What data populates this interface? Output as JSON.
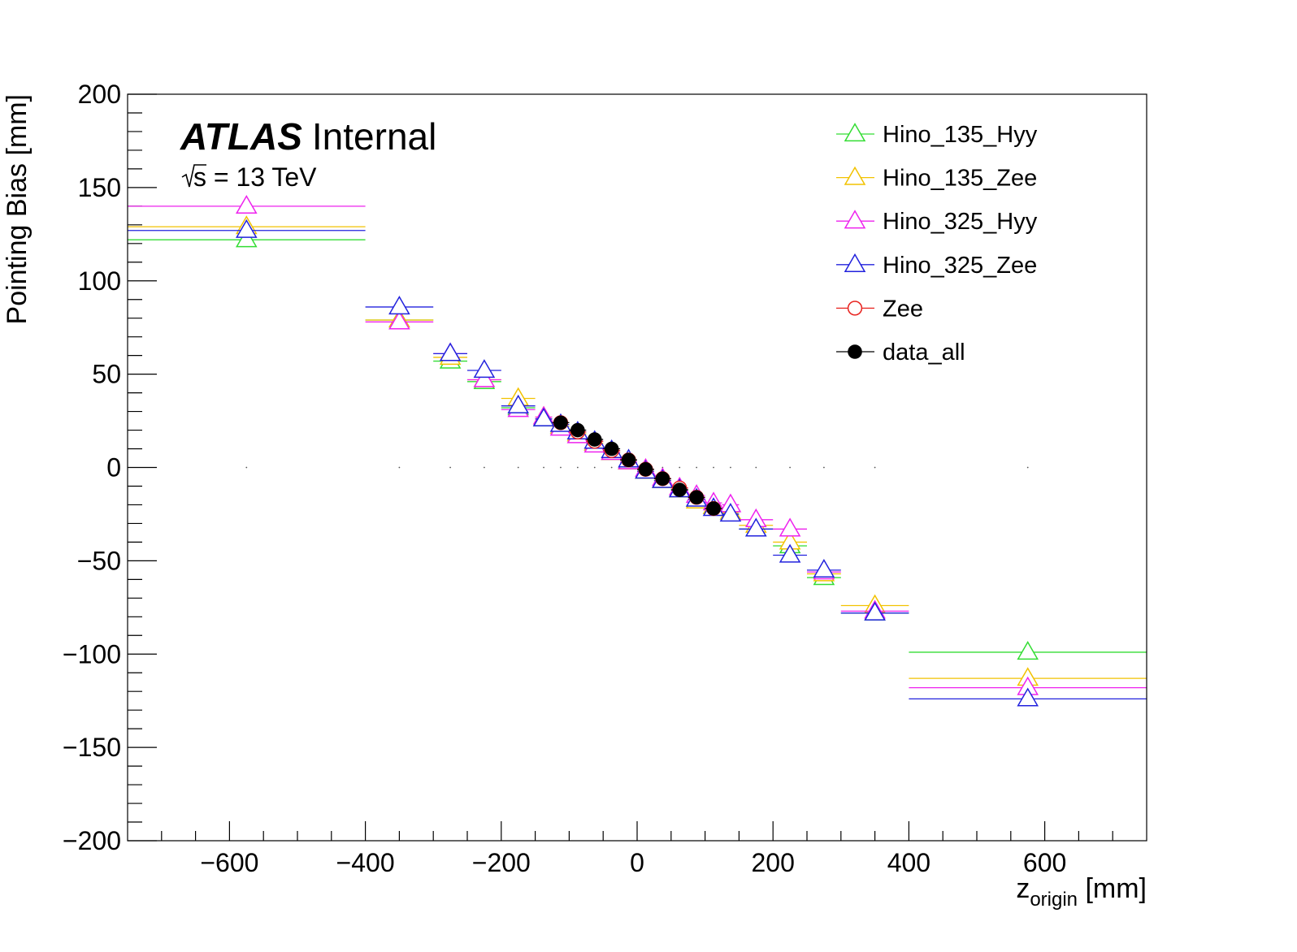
{
  "chart_data": {
    "type": "scatter",
    "experiment_label": "ATLAS",
    "status_label": "Internal",
    "energy_label": "s = 13 TeV",
    "xlabel_main": "z",
    "xlabel_sub": "origin",
    "xlabel_unit": " [mm]",
    "ylabel": "Pointing Bias [mm]",
    "xlim": [
      -750,
      750
    ],
    "ylim": [
      -200,
      200
    ],
    "x_ticks": [
      -600,
      -400,
      -200,
      0,
      200,
      400,
      600
    ],
    "x_tick_labels": [
      "−600",
      "−400",
      "−200",
      "0",
      "200",
      "400",
      "600"
    ],
    "y_ticks": [
      -200,
      -150,
      -100,
      -50,
      0,
      50,
      100,
      150,
      200
    ],
    "y_tick_labels": [
      "−200",
      "−150",
      "−100",
      "−50",
      "0",
      "50",
      "100",
      "150",
      "200"
    ],
    "grid": false,
    "legend_position": "top-right",
    "series": [
      {
        "name": "Hino_135_Hyy",
        "color": "#33dd33",
        "marker": "open-triangle",
        "points": [
          {
            "x": -575,
            "xerr": 175,
            "y": 122
          },
          {
            "x": -350,
            "xerr": 50,
            "y": 79
          },
          {
            "x": -275,
            "xerr": 25,
            "y": 57
          },
          {
            "x": -225,
            "xerr": 25,
            "y": 46
          },
          {
            "x": -175,
            "xerr": 25,
            "y": 32
          },
          {
            "x": -137.5,
            "xerr": 12.5,
            "y": 26
          },
          {
            "x": -112.5,
            "xerr": 12.5,
            "y": 22
          },
          {
            "x": -87.5,
            "xerr": 12.5,
            "y": 18
          },
          {
            "x": -62.5,
            "xerr": 12.5,
            "y": 13
          },
          {
            "x": -37.5,
            "xerr": 12.5,
            "y": 8
          },
          {
            "x": -12.5,
            "xerr": 12.5,
            "y": 3
          },
          {
            "x": 12.5,
            "xerr": 12.5,
            "y": -2
          },
          {
            "x": 37.5,
            "xerr": 12.5,
            "y": -7
          },
          {
            "x": 62.5,
            "xerr": 12.5,
            "y": -12
          },
          {
            "x": 87.5,
            "xerr": 12.5,
            "y": -17
          },
          {
            "x": 112.5,
            "xerr": 12.5,
            "y": -21
          },
          {
            "x": 137.5,
            "xerr": 12.5,
            "y": -24
          },
          {
            "x": 175,
            "xerr": 25,
            "y": -33
          },
          {
            "x": 225,
            "xerr": 25,
            "y": -42
          },
          {
            "x": 275,
            "xerr": 25,
            "y": -59
          },
          {
            "x": 350,
            "xerr": 50,
            "y": -78
          },
          {
            "x": 575,
            "xerr": 175,
            "y": -99
          }
        ]
      },
      {
        "name": "Hino_135_Zee",
        "color": "#f2c200",
        "marker": "open-triangle",
        "points": [
          {
            "x": -575,
            "xerr": 175,
            "y": 129
          },
          {
            "x": -350,
            "xerr": 50,
            "y": 79
          },
          {
            "x": -275,
            "xerr": 25,
            "y": 59
          },
          {
            "x": -225,
            "xerr": 25,
            "y": 47
          },
          {
            "x": -175,
            "xerr": 25,
            "y": 37
          },
          {
            "x": -137.5,
            "xerr": 12.5,
            "y": 27
          },
          {
            "x": -112.5,
            "xerr": 12.5,
            "y": 22
          },
          {
            "x": -87.5,
            "xerr": 12.5,
            "y": 18
          },
          {
            "x": -62.5,
            "xerr": 12.5,
            "y": 13
          },
          {
            "x": -37.5,
            "xerr": 12.5,
            "y": 8
          },
          {
            "x": -12.5,
            "xerr": 12.5,
            "y": 3
          },
          {
            "x": 12.5,
            "xerr": 12.5,
            "y": -2
          },
          {
            "x": 37.5,
            "xerr": 12.5,
            "y": -7
          },
          {
            "x": 62.5,
            "xerr": 12.5,
            "y": -12
          },
          {
            "x": 87.5,
            "xerr": 12.5,
            "y": -18
          },
          {
            "x": 112.5,
            "xerr": 12.5,
            "y": -21
          },
          {
            "x": 137.5,
            "xerr": 12.5,
            "y": -24
          },
          {
            "x": 175,
            "xerr": 25,
            "y": -31
          },
          {
            "x": 225,
            "xerr": 25,
            "y": -40
          },
          {
            "x": 275,
            "xerr": 25,
            "y": -57
          },
          {
            "x": 350,
            "xerr": 50,
            "y": -74
          },
          {
            "x": 575,
            "xerr": 175,
            "y": -113
          }
        ]
      },
      {
        "name": "Hino_325_Hyy",
        "color": "#ee22ee",
        "marker": "open-triangle",
        "points": [
          {
            "x": -575,
            "xerr": 175,
            "y": 140
          },
          {
            "x": -350,
            "xerr": 50,
            "y": 78
          },
          {
            "x": -275,
            "xerr": 25,
            "y": 61
          },
          {
            "x": -225,
            "xerr": 25,
            "y": 47
          },
          {
            "x": -175,
            "xerr": 25,
            "y": 31
          },
          {
            "x": -137.5,
            "xerr": 12.5,
            "y": 27
          },
          {
            "x": -112.5,
            "xerr": 12.5,
            "y": 21
          },
          {
            "x": -87.5,
            "xerr": 12.5,
            "y": 17
          },
          {
            "x": -62.5,
            "xerr": 12.5,
            "y": 12
          },
          {
            "x": -37.5,
            "xerr": 12.5,
            "y": 8
          },
          {
            "x": -12.5,
            "xerr": 12.5,
            "y": 3
          },
          {
            "x": 12.5,
            "xerr": 12.5,
            "y": -1
          },
          {
            "x": 37.5,
            "xerr": 12.5,
            "y": -6
          },
          {
            "x": 62.5,
            "xerr": 12.5,
            "y": -11
          },
          {
            "x": 87.5,
            "xerr": 12.5,
            "y": -15
          },
          {
            "x": 112.5,
            "xerr": 12.5,
            "y": -19
          },
          {
            "x": 137.5,
            "xerr": 12.5,
            "y": -20
          },
          {
            "x": 175,
            "xerr": 25,
            "y": -28
          },
          {
            "x": 225,
            "xerr": 25,
            "y": -33
          },
          {
            "x": 275,
            "xerr": 25,
            "y": -56
          },
          {
            "x": 350,
            "xerr": 50,
            "y": -77
          },
          {
            "x": 575,
            "xerr": 175,
            "y": -118
          }
        ]
      },
      {
        "name": "Hino_325_Zee",
        "color": "#2222dd",
        "marker": "open-triangle",
        "points": [
          {
            "x": -575,
            "xerr": 175,
            "y": 127
          },
          {
            "x": -350,
            "xerr": 50,
            "y": 86
          },
          {
            "x": -275,
            "xerr": 25,
            "y": 61
          },
          {
            "x": -225,
            "xerr": 25,
            "y": 52
          },
          {
            "x": -175,
            "xerr": 25,
            "y": 33
          },
          {
            "x": -137.5,
            "xerr": 12.5,
            "y": 26
          },
          {
            "x": -112.5,
            "xerr": 12.5,
            "y": 23
          },
          {
            "x": -87.5,
            "xerr": 12.5,
            "y": 19
          },
          {
            "x": -62.5,
            "xerr": 12.5,
            "y": 14
          },
          {
            "x": -37.5,
            "xerr": 12.5,
            "y": 9
          },
          {
            "x": -12.5,
            "xerr": 12.5,
            "y": 4
          },
          {
            "x": 12.5,
            "xerr": 12.5,
            "y": -2
          },
          {
            "x": 37.5,
            "xerr": 12.5,
            "y": -7
          },
          {
            "x": 62.5,
            "xerr": 12.5,
            "y": -12
          },
          {
            "x": 87.5,
            "xerr": 12.5,
            "y": -17
          },
          {
            "x": 112.5,
            "xerr": 12.5,
            "y": -22
          },
          {
            "x": 137.5,
            "xerr": 12.5,
            "y": -25
          },
          {
            "x": 175,
            "xerr": 25,
            "y": -33
          },
          {
            "x": 225,
            "xerr": 25,
            "y": -47
          },
          {
            "x": 275,
            "xerr": 25,
            "y": -55
          },
          {
            "x": 350,
            "xerr": 50,
            "y": -78
          },
          {
            "x": 575,
            "xerr": 175,
            "y": -124
          }
        ]
      },
      {
        "name": "Zee",
        "color": "#e8231f",
        "marker": "open-circle",
        "points": [
          {
            "x": -112.5,
            "xerr": 12.5,
            "y": 24
          },
          {
            "x": -87.5,
            "xerr": 12.5,
            "y": 19
          },
          {
            "x": -62.5,
            "xerr": 12.5,
            "y": 14
          },
          {
            "x": -37.5,
            "xerr": 12.5,
            "y": 9
          },
          {
            "x": -12.5,
            "xerr": 12.5,
            "y": 4
          },
          {
            "x": 12.5,
            "xerr": 12.5,
            "y": -1
          },
          {
            "x": 37.5,
            "xerr": 12.5,
            "y": -6
          },
          {
            "x": 62.5,
            "xerr": 12.5,
            "y": -11
          },
          {
            "x": 87.5,
            "xerr": 12.5,
            "y": -16
          },
          {
            "x": 112.5,
            "xerr": 12.5,
            "y": -22
          }
        ]
      },
      {
        "name": "data_all",
        "color": "#000000",
        "marker": "filled-circle",
        "points": [
          {
            "x": -112.5,
            "xerr": 12.5,
            "y": 24
          },
          {
            "x": -87.5,
            "xerr": 12.5,
            "y": 20
          },
          {
            "x": -62.5,
            "xerr": 12.5,
            "y": 15
          },
          {
            "x": -37.5,
            "xerr": 12.5,
            "y": 10
          },
          {
            "x": -12.5,
            "xerr": 12.5,
            "y": 4
          },
          {
            "x": 12.5,
            "xerr": 12.5,
            "y": -1
          },
          {
            "x": 37.5,
            "xerr": 12.5,
            "y": -6
          },
          {
            "x": 62.5,
            "xerr": 12.5,
            "y": -12
          },
          {
            "x": 87.5,
            "xerr": 12.5,
            "y": -16
          },
          {
            "x": 112.5,
            "xerr": 12.5,
            "y": -22
          }
        ]
      }
    ]
  }
}
